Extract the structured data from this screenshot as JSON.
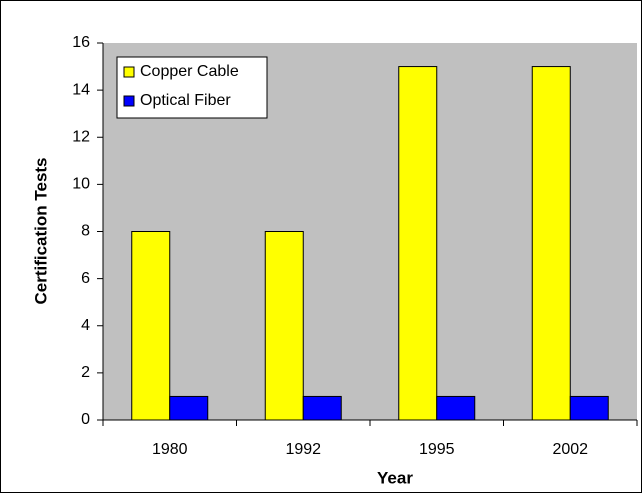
{
  "chart_data": {
    "type": "bar",
    "x_label": "Year",
    "y_label": "Certification Tests",
    "categories": [
      "1980",
      "1992",
      "1995",
      "2002"
    ],
    "series": [
      {
        "name": "Copper Cable",
        "color": "#ffff00",
        "values": [
          8,
          8,
          15,
          15
        ]
      },
      {
        "name": "Optical Fiber",
        "color": "#0000ff",
        "values": [
          1,
          1,
          1,
          1
        ]
      }
    ],
    "ylim": [
      0,
      16
    ],
    "yticks": [
      0,
      2,
      4,
      6,
      8,
      10,
      12,
      14,
      16
    ],
    "legend": "upper left",
    "plot_background": "#c0c0c0"
  }
}
